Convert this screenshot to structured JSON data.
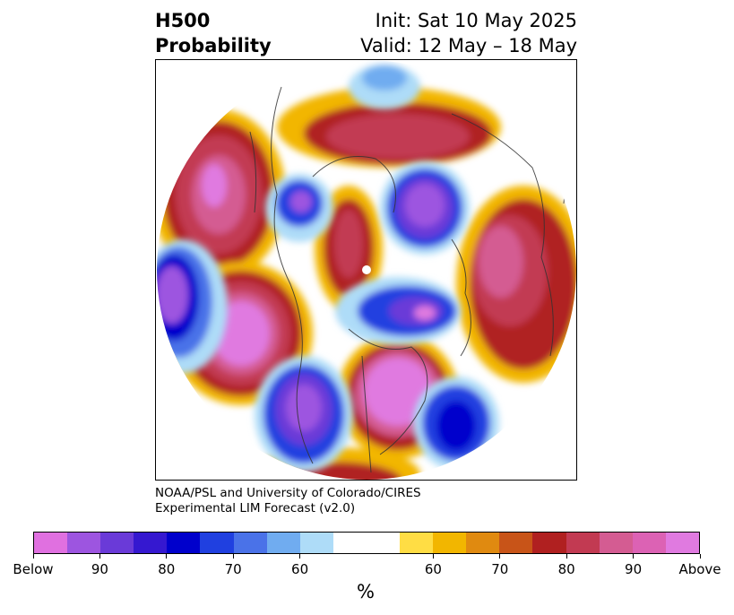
{
  "title": {
    "left_line1": "H500",
    "left_line2": "Probability",
    "right_line1": "Init: Sat 10 May 2025",
    "right_line2": "Valid: 12 May – 18 May"
  },
  "credit": {
    "line1": "NOAA/PSL and University of Colorado/CIRES",
    "line2": "Experimental LIM Forecast (v2.0)"
  },
  "colorbar": {
    "colors": [
      "#e070e0",
      "#9d55e0",
      "#6a3ad8",
      "#3518d0",
      "#0000cc",
      "#2040e0",
      "#4a72e8",
      "#70acf0",
      "#aedcf8",
      "#ffffff",
      "#ffffff",
      "#ffdd44",
      "#f2b600",
      "#e08a10",
      "#c85418",
      "#b02020",
      "#c23a52",
      "#d45c92",
      "#dc62b4",
      "#e07ae0"
    ],
    "tick_labels": [
      "Below",
      "90",
      "80",
      "70",
      "60",
      "60",
      "70",
      "80",
      "90",
      "Above"
    ],
    "units": "%"
  }
}
